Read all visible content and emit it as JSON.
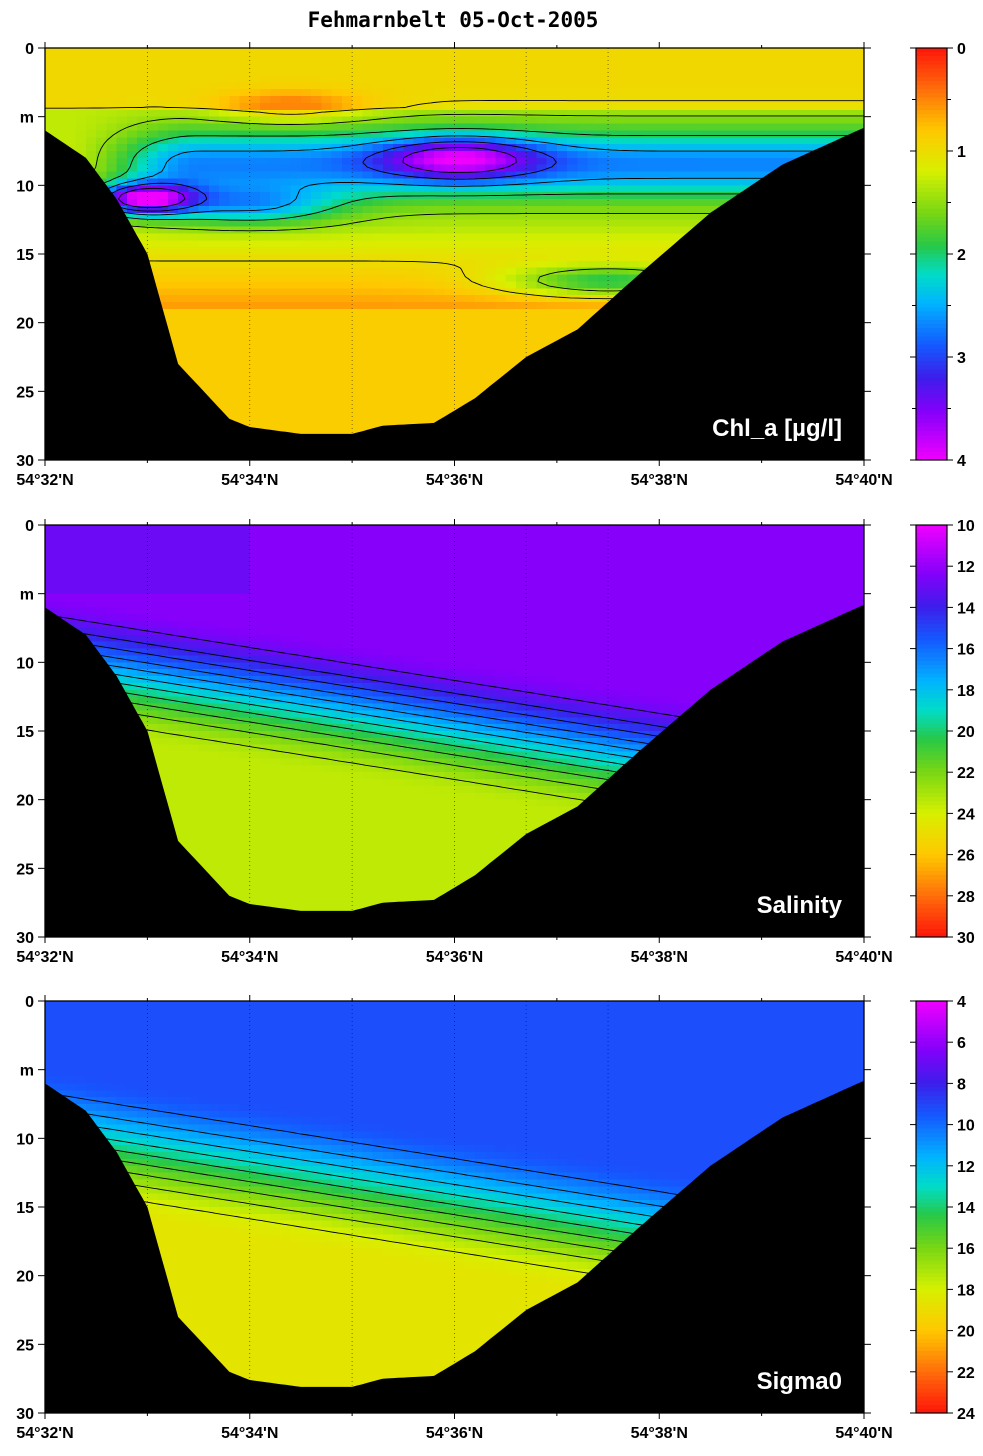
{
  "figure_title": "Fehmarnbelt 05-Oct-2005",
  "chart_data": [
    {
      "type": "heatmap",
      "label": "Chl_a   [µg/l]",
      "x_ticks": [
        "54°32'N",
        "54°34'N",
        "54°36'N",
        "54°38'N",
        "54°40'N"
      ],
      "x_range": [
        32,
        40
      ],
      "y_range": [
        0,
        30
      ],
      "y_ticks": [
        "0",
        "m",
        "10",
        "15",
        "20",
        "25",
        "30"
      ],
      "colorbar": {
        "min": 0,
        "max": 4,
        "reversed": true,
        "ticks": [
          "0",
          "1",
          "2",
          "3",
          "4"
        ]
      },
      "stations_lat_min": [
        33,
        34,
        35,
        36,
        36.7,
        37.5
      ],
      "fields": {
        "surface": 0.95,
        "upper_mixed": 1.3,
        "bloom_main": {
          "center_lat_min": 36.0,
          "depth_m": 8,
          "value": 3.9
        },
        "bloom_west": {
          "center_lat_min": 32.9,
          "depth_m": 11,
          "value": 3.9
        },
        "deep": 0.85
      }
    },
    {
      "type": "heatmap",
      "label": "Salinity",
      "x_ticks": [
        "54°32'N",
        "54°34'N",
        "54°36'N",
        "54°38'N",
        "54°40'N"
      ],
      "x_range": [
        32,
        40
      ],
      "y_range": [
        0,
        30
      ],
      "y_ticks": [
        "0",
        "m",
        "10",
        "15",
        "20",
        "25",
        "30"
      ],
      "colorbar": {
        "min": 10,
        "max": 30,
        "reversed": false,
        "ticks": [
          "10",
          "12",
          "14",
          "16",
          "18",
          "20",
          "22",
          "24",
          "26",
          "28",
          "30"
        ]
      },
      "fields": {
        "surface": 12.5,
        "bottom": 23.5
      }
    },
    {
      "type": "heatmap",
      "label": "Sigma0",
      "x_ticks": [
        "54°32'N",
        "54°34'N",
        "54°36'N",
        "54°38'N",
        "54°40'N"
      ],
      "x_range": [
        32,
        40
      ],
      "y_range": [
        0,
        30
      ],
      "y_ticks": [
        "0",
        "m",
        "10",
        "15",
        "20",
        "25",
        "30"
      ],
      "colorbar": {
        "min": 4,
        "max": 24,
        "reversed": false,
        "ticks": [
          "4",
          "6",
          "8",
          "10",
          "12",
          "14",
          "16",
          "18",
          "20",
          "22",
          "24"
        ]
      },
      "fields": {
        "surface": 9.5,
        "bottom": 18.5
      }
    }
  ],
  "bathymetry": {
    "lat_min": [
      32,
      32.4,
      32.7,
      33.0,
      33.3,
      33.8,
      34.0,
      34.5,
      35.0,
      35.3,
      35.8,
      36.2,
      36.7,
      37.2,
      37.8,
      38.5,
      39.2,
      40.0
    ],
    "depth_m": [
      6.0,
      8.0,
      11.0,
      15.0,
      23.0,
      27.0,
      27.6,
      28.1,
      28.1,
      27.5,
      27.3,
      25.5,
      22.5,
      20.5,
      16.5,
      12.0,
      8.5,
      5.8
    ]
  }
}
